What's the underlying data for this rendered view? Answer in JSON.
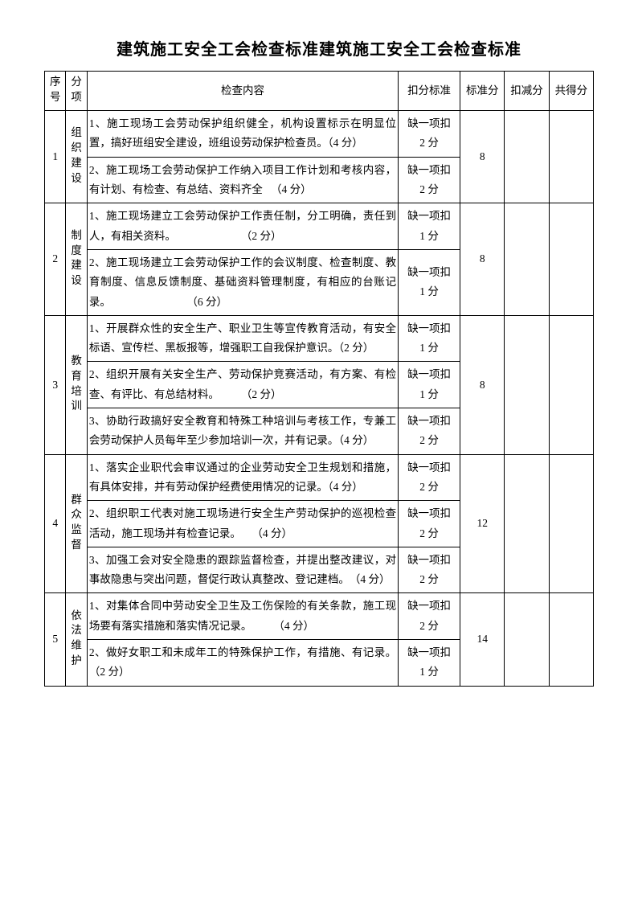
{
  "title": "建筑施工安全工会检查标准建筑施工安全工会检查标准",
  "headers": {
    "seq": "序号",
    "cat": "分项",
    "content": "检查内容",
    "ded": "扣分标准",
    "std": "标准分",
    "minus": "扣减分",
    "total": "共得分"
  },
  "sections": [
    {
      "seq": "1",
      "cat": "组织建设",
      "std": "8",
      "rows": [
        {
          "content": "1、施工现场工会劳动保护组织健全，机构设置标示在明显位置，搞好班组安全建设，班组设劳动保护检查员。（4 分）",
          "ded": "缺一项扣\n2 分"
        },
        {
          "content": "2、施工现场工会劳动保护工作纳入项目工作计划和考核内容，有计划、有检查、有总结、资料齐全 　（4 分）",
          "ded": "缺一项扣\n2 分"
        }
      ]
    },
    {
      "seq": "2",
      "cat": "制度建设",
      "std": "8",
      "rows": [
        {
          "content": "1、施工现场建立工会劳动保护工作责任制，分工明确，责任到人，有相关资料。　　　　　　　（2 分）",
          "ded": "缺一项扣\n1 分"
        },
        {
          "content": "2、施工现场建立工会劳动保护工作的会议制度、检查制度、教育制度、信息反馈制度、基础资料管理制度，有相应的台账记录。　　　　　　　　（6 分）",
          "ded": "缺一项扣\n1 分"
        }
      ]
    },
    {
      "seq": "3",
      "cat": "教育培训",
      "std": "8",
      "rows": [
        {
          "content": "1、开展群众性的安全生产、职业卫生等宣传教育活动，有安全标语、宣传栏、黑板报等，增强职工自我保护意识。（2 分）",
          "ded": "缺一项扣\n1 分"
        },
        {
          "content": "2、组织开展有关安全生产、劳动保护竞赛活动，有方案、有检查、有评比、有总结材料。　　　（2 分）",
          "ded": "缺一项扣\n1 分"
        },
        {
          "content": "3、协助行政搞好安全教育和特殊工种培训与考核工作，专兼工会劳动保护人员每年至少参加培训一次，并有记录。（4 分）",
          "ded": "缺一项扣\n2 分"
        }
      ]
    },
    {
      "seq": "4",
      "cat": "群众监督",
      "std": "12",
      "rows": [
        {
          "content": "1、落实企业职代会审议通过的企业劳动安全卫生规划和措施，有具体安排，并有劳动保护经费使用情况的记录。（4 分）",
          "ded": "缺一项扣\n2 分"
        },
        {
          "content": "2、组织职工代表对施工现场进行安全生产劳动保护的巡视检查活动，施工现场并有检查记录。　　（4 分）",
          "ded": "缺一项扣\n2 分"
        },
        {
          "content": "3、加强工会对安全隐患的跟踪监督检查，并提出整改建议，对事故隐患与突出问题，督促行政认真整改、登记建档。　（4 分）",
          "ded": "缺一项扣\n2 分"
        }
      ]
    },
    {
      "seq": "5",
      "cat": "依法维护",
      "std": "14",
      "rows": [
        {
          "content": "1、对集体合同中劳动安全卫生及工伤保险的有关条款，施工现场要有落实措施和落实情况记录。　　　（4 分）",
          "ded": "缺一项扣\n2 分"
        },
        {
          "content": "2、做好女职工和未成年工的特殊保护工作，有措施、有记录。（2 分）",
          "ded": "缺一项扣\n1 分"
        }
      ]
    }
  ]
}
